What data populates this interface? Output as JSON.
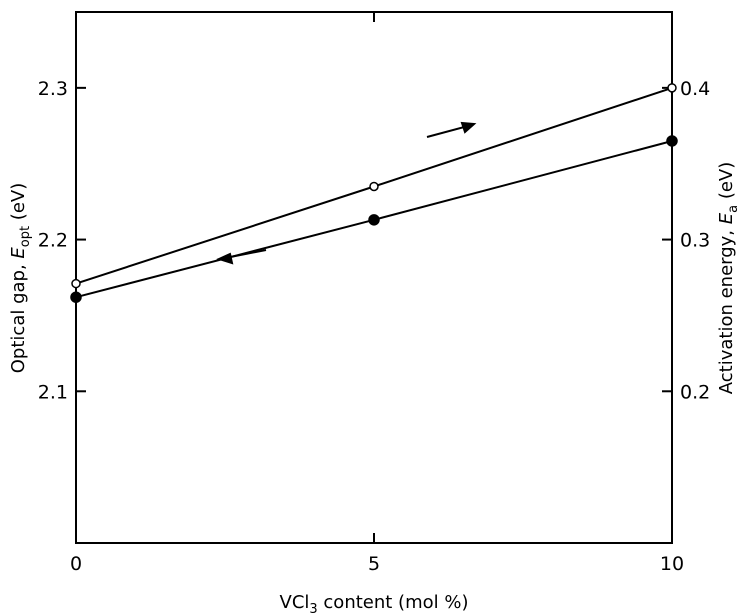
{
  "chart_data": {
    "type": "line",
    "x": [
      0,
      5,
      10
    ],
    "xlim": [
      0,
      10
    ],
    "x_ticks": [
      0,
      5,
      10
    ],
    "xlabel": {
      "pre": "VCl",
      "sub": "3",
      "post": " content (mol %)"
    },
    "ylim_left": [
      2.0,
      2.35
    ],
    "y_ticks_left": [
      2.1,
      2.2,
      2.3
    ],
    "y_ticks_left_labels": [
      "2.1",
      "2.2",
      "2.3"
    ],
    "ylabel_left": {
      "pre": "Optical gap, ",
      "var": "E",
      "sub": "opt",
      "post": " (eV)"
    },
    "ylim_right": [
      0.1,
      0.45
    ],
    "y_ticks_right": [
      0.2,
      0.3,
      0.4
    ],
    "y_ticks_right_labels": [
      "0.2",
      "0.3",
      "0.4"
    ],
    "ylabel_right": {
      "pre": "Activation energy, ",
      "var": "E",
      "sub": "a",
      "post": " (eV)"
    },
    "series": [
      {
        "axis": "right",
        "marker": "open-circle",
        "values": [
          0.271,
          0.335,
          0.4
        ]
      },
      {
        "axis": "left",
        "marker": "filled-circle",
        "values": [
          2.162,
          2.213,
          2.265
        ]
      }
    ],
    "annotations": [
      {
        "type": "arrow",
        "direction": "right",
        "indicates": "right-axis series"
      },
      {
        "type": "arrow",
        "direction": "left",
        "indicates": "left-axis series"
      }
    ],
    "grid": false,
    "colors": {
      "ink": "#000000",
      "background": "#ffffff"
    }
  }
}
